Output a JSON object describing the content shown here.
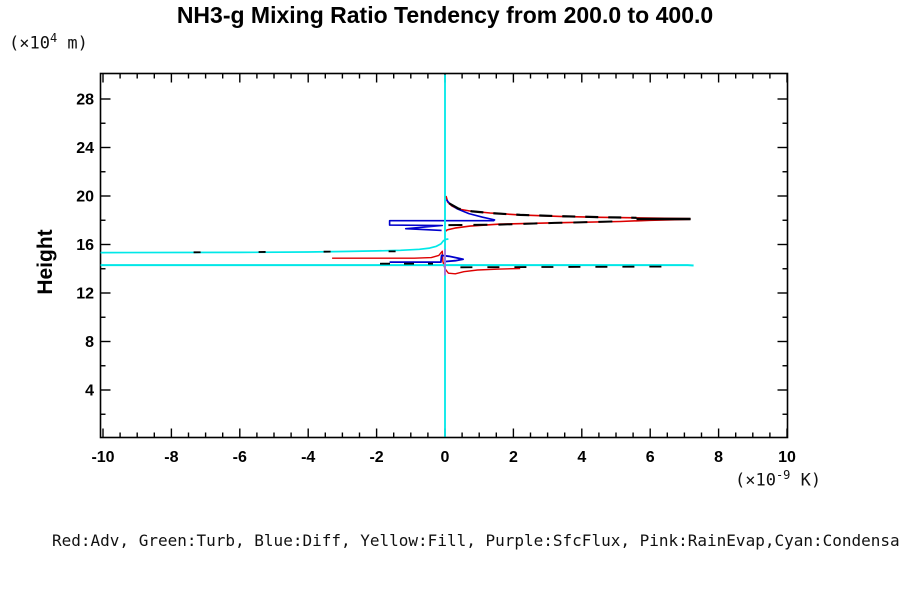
{
  "title": "NH3-g Mixing Ratio Tendency from 200.0 to 400.0",
  "y_axis": {
    "label": "Height",
    "unit_prefix": "(×10",
    "unit_exp": "4",
    "unit_suffix": " m)"
  },
  "x_axis": {
    "unit_prefix": "(×10",
    "unit_exp": "-9",
    "unit_suffix": " K)"
  },
  "legend_text": "Red:Adv, Green:Turb, Blue:Diff, Yellow:Fill, Purple:SfcFlux, Pink:RainEvap,Cyan:Condensation",
  "chart_data": {
    "type": "line",
    "xlabel_unit": "x10^-9 K",
    "ylabel": "Height (x10^4 m)",
    "xlim": [
      -10,
      10
    ],
    "ylim": [
      0,
      30
    ],
    "x_major_step": 2,
    "x_minor_step": 0.5,
    "y_major_step": 4,
    "y_minor_step": 2,
    "x_tick_labels": [
      -10,
      -8,
      -6,
      -4,
      -2,
      0,
      2,
      4,
      6,
      8,
      10
    ],
    "y_tick_labels": [
      4,
      8,
      12,
      16,
      20,
      24,
      28
    ],
    "grid": false,
    "colors": {
      "adv": "#dd0000",
      "turb": "#008800",
      "diff": "#0000cc",
      "fill": "#dddd00",
      "sfcflux": "#8800cc",
      "rainevap": "#bb66dd",
      "condensation": "#00e8e8",
      "total": "#000000"
    },
    "series": [
      {
        "name": "adv-lower-curve",
        "color": "#dd0000",
        "width": 1.4,
        "points": [
          [
            -3.3,
            14.87
          ],
          [
            -0.9,
            14.87
          ],
          [
            -0.4,
            14.92
          ],
          [
            -0.18,
            15.1
          ],
          [
            -0.08,
            15.45
          ],
          [
            -0.06,
            14.6
          ],
          [
            0.0,
            14.0
          ],
          [
            0.1,
            13.63
          ],
          [
            0.3,
            13.58
          ],
          [
            0.55,
            13.76
          ],
          [
            0.95,
            13.9
          ],
          [
            1.6,
            13.97
          ],
          [
            2.2,
            14.02
          ]
        ]
      },
      {
        "name": "diff-lower-curve",
        "color": "#0000cc",
        "width": 1.8,
        "points": [
          [
            -1.62,
            14.55
          ],
          [
            -0.12,
            14.55
          ],
          [
            -0.1,
            15.1
          ],
          [
            0.12,
            15.03
          ],
          [
            0.38,
            14.88
          ],
          [
            0.53,
            14.78
          ],
          [
            0.3,
            14.66
          ],
          [
            0.02,
            14.6
          ]
        ]
      },
      {
        "name": "adv-upper-loop",
        "color": "#dd0000",
        "width": 1.6,
        "points": [
          [
            0.03,
            20.0
          ],
          [
            0.08,
            19.5
          ],
          [
            0.2,
            19.18
          ],
          [
            0.38,
            18.93
          ],
          [
            0.73,
            18.76
          ],
          [
            1.32,
            18.6
          ],
          [
            2.19,
            18.44
          ],
          [
            3.36,
            18.32
          ],
          [
            4.53,
            18.24
          ],
          [
            5.7,
            18.19
          ],
          [
            7.16,
            18.13
          ],
          [
            7.16,
            18.08
          ],
          [
            5.99,
            18.0
          ],
          [
            5.12,
            17.9
          ],
          [
            3.36,
            17.8
          ],
          [
            1.61,
            17.68
          ],
          [
            0.73,
            17.52
          ],
          [
            0.29,
            17.35
          ],
          [
            0.06,
            17.2
          ],
          [
            0.03,
            17.1
          ]
        ]
      },
      {
        "name": "diff-upper-loop",
        "color": "#0000cc",
        "width": 1.6,
        "points": [
          [
            0.04,
            19.7
          ],
          [
            0.15,
            19.33
          ],
          [
            0.35,
            18.95
          ],
          [
            0.7,
            18.55
          ],
          [
            1.1,
            18.25
          ],
          [
            1.45,
            18.03
          ],
          [
            1.42,
            17.96
          ],
          [
            -1.62,
            17.96
          ],
          [
            -1.62,
            17.6
          ],
          [
            -0.08,
            17.57
          ],
          [
            -1.15,
            17.3
          ],
          [
            -0.1,
            17.16
          ]
        ]
      },
      {
        "name": "condensation-curve-upper",
        "color": "#00e8e8",
        "width": 1.7,
        "points": [
          [
            -10.07,
            15.33
          ],
          [
            -6,
            15.35
          ],
          [
            -4,
            15.38
          ],
          [
            -3,
            15.42
          ],
          [
            -2,
            15.47
          ],
          [
            -1.3,
            15.52
          ],
          [
            -0.75,
            15.6
          ],
          [
            -0.45,
            15.7
          ],
          [
            -0.25,
            15.85
          ],
          [
            -0.12,
            16.05
          ],
          [
            -0.05,
            16.3
          ],
          [
            0.02,
            16.42
          ],
          [
            0.1,
            16.45
          ]
        ]
      },
      {
        "name": "condensation-line-lower",
        "color": "#00e8e8",
        "width": 2.0,
        "points": [
          [
            -10.07,
            14.3
          ],
          [
            7.1,
            14.3
          ],
          [
            7.27,
            14.27
          ]
        ]
      },
      {
        "name": "condensation-zero-line",
        "color": "#00e8e8",
        "width": 1.8,
        "points": [
          [
            0,
            30.0
          ],
          [
            0,
            0.15
          ]
        ]
      },
      {
        "name": "rainevap-segment",
        "color": "#bb66dd",
        "width": 1.6,
        "points": [
          [
            0,
            15.6
          ],
          [
            0,
            13.45
          ]
        ]
      },
      {
        "name": "total-dashed-upper-top",
        "color": "#000000",
        "width": 2.2,
        "dash": "13 10",
        "points": [
          [
            0.12,
            19.4
          ],
          [
            0.4,
            18.95
          ],
          [
            0.8,
            18.73
          ],
          [
            1.4,
            18.58
          ],
          [
            2.2,
            18.44
          ],
          [
            3.4,
            18.33
          ],
          [
            4.6,
            18.25
          ],
          [
            5.6,
            18.2
          ]
        ]
      },
      {
        "name": "total-solid-tip",
        "color": "#000000",
        "width": 2.6,
        "points": [
          [
            5.6,
            18.1
          ],
          [
            7.18,
            18.1
          ]
        ]
      },
      {
        "name": "total-dashed-upper-bottom",
        "color": "#000000",
        "width": 2.0,
        "dash": "14 11",
        "points": [
          [
            0.1,
            17.6
          ],
          [
            1.6,
            17.64
          ],
          [
            3.2,
            17.78
          ],
          [
            4.9,
            17.9
          ]
        ]
      },
      {
        "name": "total-dashed-cond-sparse",
        "color": "#000000",
        "width": 1.8,
        "dash": "7 58",
        "points": [
          [
            -7.35,
            15.36
          ],
          [
            -0.5,
            15.45
          ]
        ]
      },
      {
        "name": "total-dashed-left-mid",
        "color": "#000000",
        "width": 1.8,
        "dash": "10 14",
        "points": [
          [
            -1.9,
            14.42
          ],
          [
            -0.35,
            14.42
          ]
        ]
      },
      {
        "name": "total-dashed-right-mid",
        "color": "#000000",
        "width": 1.8,
        "dash": "12 15",
        "points": [
          [
            0.45,
            14.12
          ],
          [
            6.4,
            14.18
          ]
        ]
      }
    ]
  }
}
